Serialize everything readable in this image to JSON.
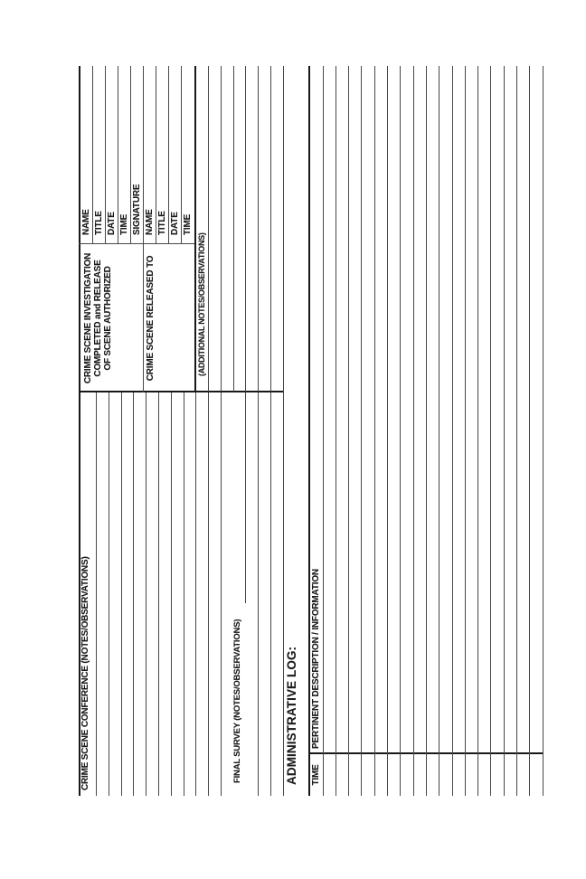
{
  "form": {
    "conference_header": "CRIME SCENE CONFERENCE (NOTES/OBSERVATIONS)",
    "final_survey_header": "FINAL SURVEY (NOTES/OBSERVATIONS)",
    "admin_log_header": "ADMINISTRATIVE LOG:",
    "admin_table": {
      "columns": [
        "TIME",
        "PERTINENT DESCRIPTION / INFORMATION"
      ]
    },
    "release_box": {
      "investigation_label_lines": [
        "CRIME SCENE INVESTIGATION",
        "COMPLETED and RELEASE",
        "OF SCENE AUTHORIZED"
      ],
      "investigation_fields": [
        "NAME",
        "TITLE",
        "DATE",
        "TIME",
        "SIGNATURE"
      ],
      "released_to_label": "CRIME SCENE RELEASED TO",
      "released_to_fields": [
        "NAME",
        "TITLE",
        "DATE",
        "TIME"
      ],
      "additional_notes_label": "(ADDITIONAL NOTES/OBSERVATIONS)"
    }
  },
  "colors": {
    "paper": "#ffffff",
    "ink": "#1b1b1b",
    "rule_line": "#474747",
    "border_line": "#181818"
  }
}
